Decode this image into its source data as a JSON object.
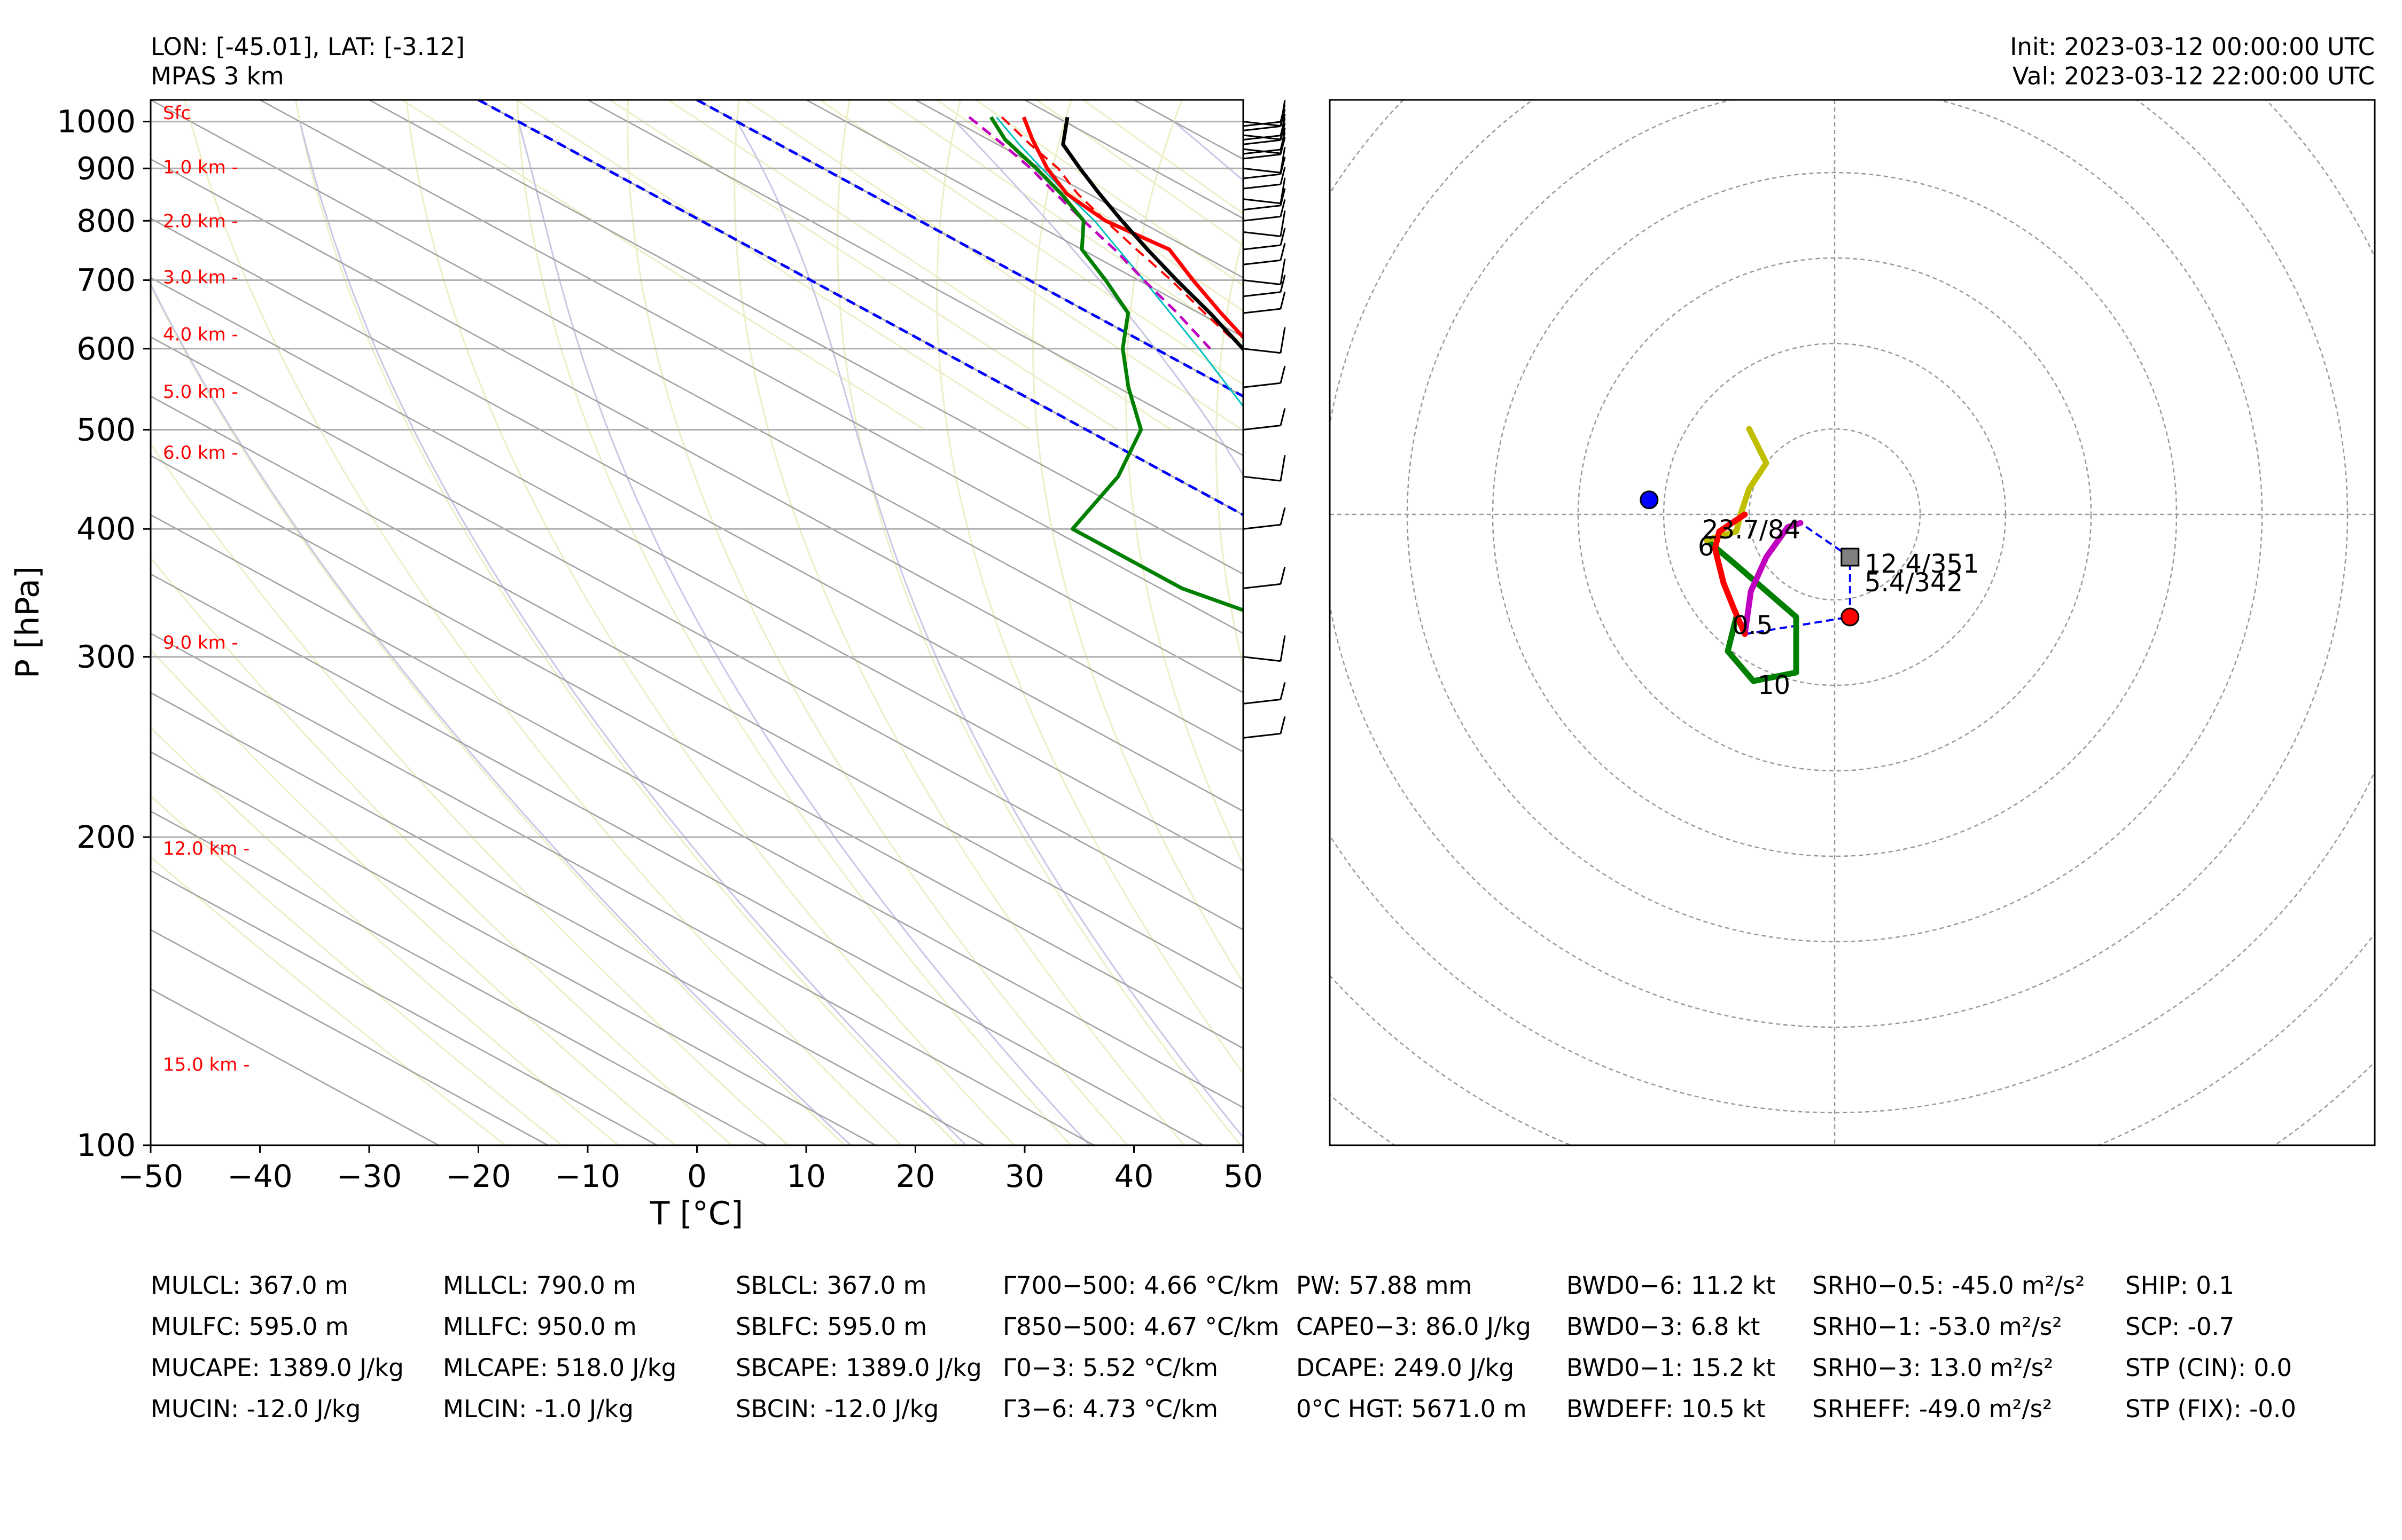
{
  "header": {
    "location": "LON: [-45.01], LAT: [-3.12]",
    "model": "MPAS 3 km",
    "init": "Init: 2023-03-12 00:00:00 UTC",
    "valid": "Val: 2023-03-12 22:00:00 UTC"
  },
  "chart_data": [
    {
      "type": "line",
      "name": "skew-t",
      "xlabel": "T [°C]",
      "ylabel": "P [hPa]",
      "xlim": [
        -50,
        50
      ],
      "ylim": [
        1050,
        100
      ],
      "y_scale": "log",
      "grid": true,
      "x_ticks": [
        "−50",
        "−40",
        "−30",
        "−20",
        "−10",
        "0",
        "10",
        "20",
        "30",
        "40",
        "50"
      ],
      "y_ticks": [
        "100",
        "200",
        "300",
        "400",
        "500",
        "600",
        "700",
        "800",
        "900",
        "1000"
      ],
      "height_labels": [
        {
          "p": 1020,
          "text": "Sfc"
        },
        {
          "p": 903,
          "text": "1.0 km -"
        },
        {
          "p": 800,
          "text": "2.0 km -"
        },
        {
          "p": 705,
          "text": "3.0 km -"
        },
        {
          "p": 620,
          "text": "4.0 km -"
        },
        {
          "p": 545,
          "text": "5.0 km -"
        },
        {
          "p": 475,
          "text": "6.0 km -"
        },
        {
          "p": 310,
          "text": "9.0 km -"
        },
        {
          "p": 195,
          "text": "12.0 km -"
        },
        {
          "p": 120,
          "text": "15.0 km -"
        }
      ],
      "series": [
        {
          "name": "",
          "role": "temperature",
          "color": "#ff0000",
          "points": [
            [
              1010,
              27.0
            ],
            [
              960,
              24.0
            ],
            [
              900,
              20.5
            ],
            [
              850,
              18.0
            ],
            [
              800,
              17.0
            ],
            [
              750,
              18.0
            ],
            [
              700,
              15.0
            ],
            [
              650,
              12.0
            ],
            [
              600,
              9.0
            ],
            [
              550,
              5.5
            ],
            [
              500,
              1.5
            ],
            [
              450,
              -2.5
            ],
            [
              400,
              -7.0
            ],
            [
              350,
              -13.0
            ],
            [
              300,
              -21.0
            ],
            [
              250,
              -31.0
            ],
            [
              200,
              -43.0
            ],
            [
              170,
              -52.0
            ],
            [
              150,
              -57.0
            ],
            [
              130,
              -63.0
            ],
            [
              100,
              -73.0
            ]
          ]
        },
        {
          "name": "",
          "role": "dewpoint",
          "color": "#008000",
          "points": [
            [
              1010,
              24.0
            ],
            [
              960,
              21.5
            ],
            [
              900,
              19.5
            ],
            [
              850,
              17.5
            ],
            [
              800,
              15.0
            ],
            [
              750,
              10.0
            ],
            [
              700,
              7.0
            ],
            [
              650,
              3.5
            ],
            [
              600,
              -3.0
            ],
            [
              550,
              -9.0
            ],
            [
              500,
              -15.0
            ],
            [
              450,
              -25.0
            ],
            [
              400,
              -38.0
            ],
            [
              350,
              -38.0
            ],
            [
              300,
              -32.0
            ],
            [
              250,
              -40.0
            ],
            [
              200,
              -45.0
            ],
            [
              170,
              -52.0
            ],
            [
              150,
              -59.0
            ],
            [
              130,
              -67.0
            ],
            [
              100,
              -83.0
            ]
          ]
        },
        {
          "name": "",
          "role": "parcel",
          "color": "#000000",
          "points": [
            [
              1010,
              31.0
            ],
            [
              950,
              26.0
            ],
            [
              900,
              23.5
            ],
            [
              850,
              21.0
            ],
            [
              800,
              18.5
            ],
            [
              750,
              16.0
            ],
            [
              700,
              13.5
            ],
            [
              650,
              11.0
            ],
            [
              600,
              8.0
            ],
            [
              550,
              4.5
            ],
            [
              500,
              0.5
            ],
            [
              450,
              -4.0
            ],
            [
              400,
              -9.5
            ],
            [
              350,
              -16.5
            ],
            [
              300,
              -25.5
            ],
            [
              250,
              -37.0
            ],
            [
              200,
              -52.0
            ],
            [
              170,
              -60.0
            ],
            [
              150,
              -65.0
            ],
            [
              130,
              -71.0
            ],
            [
              100,
              -84.0
            ]
          ]
        },
        {
          "name": "",
          "role": "virtual-temperature",
          "color": "#ff0000",
          "dashed": true,
          "points": [
            [
              1010,
              25.0
            ],
            [
              950,
              23.0
            ],
            [
              900,
              21.5
            ],
            [
              850,
              19.0
            ],
            [
              800,
              17.0
            ],
            [
              750,
              15.0
            ],
            [
              700,
              13.0
            ],
            [
              650,
              10.5
            ],
            [
              600,
              8.0
            ]
          ]
        },
        {
          "name": "",
          "role": "wetbulb",
          "color": "#00bfbf",
          "points": [
            [
              1010,
              24.5
            ],
            [
              950,
              22.0
            ],
            [
              900,
              20.0
            ],
            [
              850,
              18.0
            ],
            [
              800,
              16.0
            ],
            [
              700,
              10.5
            ],
            [
              600,
              4.0
            ],
            [
              500,
              -4.0
            ],
            [
              400,
              -15.0
            ],
            [
              300,
              -30.0
            ],
            [
              200,
              -50.0
            ],
            [
              170,
              -56.0
            ],
            [
              150,
              -61.0
            ],
            [
              130,
              -67.0
            ],
            [
              100,
              -75.0
            ]
          ]
        },
        {
          "name": "",
          "role": "downdraft",
          "color": "#bf00bf",
          "dashed": true,
          "points": [
            [
              1010,
              22.0
            ],
            [
              950,
              20.5
            ],
            [
              900,
              19.0
            ],
            [
              850,
              17.0
            ],
            [
              800,
              15.0
            ],
            [
              750,
              13.0
            ],
            [
              700,
              10.5
            ],
            [
              650,
              8.0
            ],
            [
              600,
              5.0
            ]
          ]
        }
      ],
      "reference_lines": [
        {
          "role": "isotherm",
          "temperature": 0,
          "color": "#0000ff",
          "dashed": true
        },
        {
          "role": "isotherm",
          "temperature": -20,
          "color": "#0000ff",
          "dashed": true
        }
      ]
    },
    {
      "type": "scatter",
      "name": "hodograph",
      "grid": true,
      "rings": 6,
      "labels": [
        {
          "text": "23.7/84",
          "u": -15.5,
          "v": -2.8
        },
        {
          "text": "6",
          "u": -16.0,
          "v": -4.8
        },
        {
          "text": "12.4/351",
          "u": 3.5,
          "v": -6.8
        },
        {
          "text": "5.4/342",
          "u": 3.5,
          "v": -9.0
        },
        {
          "text": "0.5",
          "u": -12.0,
          "v": -14.0
        },
        {
          "text": "10",
          "u": -9.0,
          "v": -21.0
        }
      ],
      "series": [
        {
          "name": "",
          "role": "hodo-0-1km",
          "color": "#ff0000",
          "u": [
            -10.5,
            -11.8,
            -13.0,
            -14.0,
            -13.5,
            -12.0,
            -10.5
          ],
          "v": [
            -14.0,
            -11.0,
            -8.0,
            -4.0,
            -2.0,
            -1.0,
            0.0
          ]
        },
        {
          "name": "",
          "role": "hodo-1-3km",
          "color": "#bf00bf",
          "u": [
            -10.5,
            -9.8,
            -8.0,
            -5.5,
            -4.0
          ],
          "v": [
            -14.0,
            -9.0,
            -5.0,
            -1.5,
            -1.0
          ]
        },
        {
          "name": "",
          "role": "hodo-3-6km",
          "color": "#008000",
          "u": [
            -15.0,
            -12.0,
            -4.5,
            -4.5,
            -9.5,
            -12.5,
            -11.5
          ],
          "v": [
            -3.0,
            -5.5,
            -12.0,
            -18.5,
            -19.5,
            -16.0,
            -12.0
          ]
        },
        {
          "name": "",
          "role": "hodo-6-12km",
          "color": "#bfbf00",
          "u": [
            -15.0,
            -11.5,
            -11.0,
            -10.0,
            -8.0,
            -10.0
          ],
          "v": [
            -3.0,
            -2.0,
            0.0,
            3.0,
            6.0,
            10.0
          ]
        }
      ],
      "markers": [
        {
          "role": "bunkers-right",
          "u": 1.8,
          "v": -12.0,
          "color": "#ff0000"
        },
        {
          "role": "bunkers-left",
          "u": -21.7,
          "v": 1.7,
          "color": "#0000ff"
        },
        {
          "role": "mean-wind",
          "u": 1.8,
          "v": -5.0,
          "color": "#808080"
        }
      ]
    }
  ],
  "indices": [
    [
      "MULCL: 367.0 m",
      "MULFC: 595.0 m",
      "MUCAPE: 1389.0 J/kg",
      "MUCIN: -12.0 J/kg"
    ],
    [
      "MLLCL: 790.0 m",
      "MLLFC: 950.0 m",
      "MLCAPE: 518.0 J/kg",
      "MLCIN: -1.0 J/kg"
    ],
    [
      "SBLCL: 367.0 m",
      "SBLFC: 595.0 m",
      "SBCAPE: 1389.0 J/kg",
      "SBCIN: -12.0 J/kg"
    ],
    [
      "Γ700−500: 4.66 °C/km",
      "Γ850−500: 4.67 °C/km",
      "Γ0−3: 5.52 °C/km",
      "Γ3−6: 4.73 °C/km"
    ],
    [
      "PW: 57.88 mm",
      "CAPE0−3: 86.0 J/kg",
      "DCAPE: 249.0 J/kg",
      "0°C HGT: 5671.0 m"
    ],
    [
      "BWD0−6: 11.2 kt",
      "BWD0−3: 6.8 kt",
      "BWD0−1: 15.2 kt",
      "BWDEFF: 10.5 kt"
    ],
    [
      "SRH0−0.5: -45.0 m²/s²",
      "SRH0−1: -53.0 m²/s²",
      "SRH0−3: 13.0 m²/s²",
      "SRHEFF: -49.0 m²/s²"
    ],
    [
      "SHIP: 0.1",
      "SCP: -0.7",
      "STP (CIN): 0.0",
      "STP (FIX): -0.0"
    ]
  ]
}
